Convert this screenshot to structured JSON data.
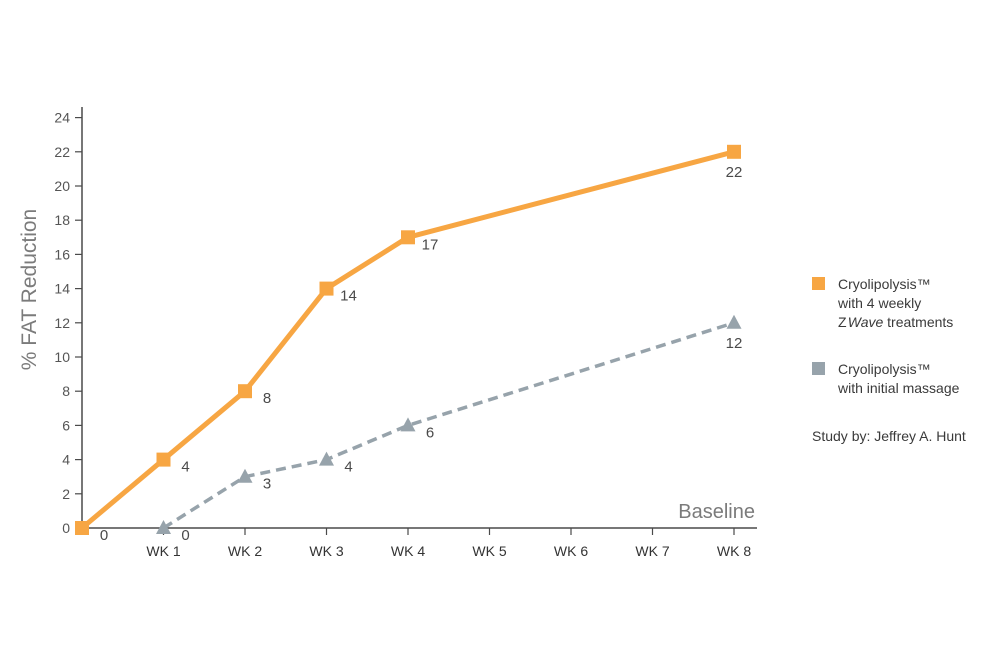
{
  "chart_data": {
    "type": "line",
    "ylabel": "% FAT Reduction",
    "xlabel": "Baseline",
    "ylim": [
      0,
      24
    ],
    "yticks": [
      0,
      2,
      4,
      6,
      8,
      10,
      12,
      14,
      16,
      18,
      20,
      22,
      24
    ],
    "categories": [
      "",
      "WK 1",
      "WK 2",
      "WK 3",
      "WK 4",
      "WK 5",
      "WK 6",
      "WK 7",
      "WK 8"
    ],
    "grid": false,
    "legend_placement": "right",
    "series": [
      {
        "name": "Cryolipolysis™ with 4 weekly Z Wave treatments",
        "color": "#f7a643",
        "marker": "square",
        "line_style": "solid",
        "points": [
          {
            "x": "",
            "y": 0,
            "label": "0"
          },
          {
            "x": "WK 1",
            "y": 4,
            "label": "4"
          },
          {
            "x": "WK 2",
            "y": 8,
            "label": "8"
          },
          {
            "x": "WK 3",
            "y": 14,
            "label": "14"
          },
          {
            "x": "WK 4",
            "y": 17,
            "label": "17"
          },
          {
            "x": "WK 8",
            "y": 22,
            "label": "22"
          }
        ]
      },
      {
        "name": "Cryolipolysis™ with initial massage",
        "color": "#97a3ab",
        "marker": "triangle",
        "line_style": "dashed",
        "points": [
          {
            "x": "WK 1",
            "y": 0,
            "label": "0"
          },
          {
            "x": "WK 2",
            "y": 3,
            "label": "3"
          },
          {
            "x": "WK 3",
            "y": 4,
            "label": "4"
          },
          {
            "x": "WK 4",
            "y": 6,
            "label": "6"
          },
          {
            "x": "WK 8",
            "y": 12,
            "label": "12"
          }
        ]
      }
    ]
  },
  "legend": {
    "items": [
      {
        "lines": [
          "Cryolipolysis™",
          "with 4 weekly"
        ],
        "last_prefix": "Z",
        "last_italic": "Wave",
        "last_suffix": " treatments",
        "color": "#f7a643"
      },
      {
        "lines": [
          "Cryolipolysis™",
          "with initial massage"
        ],
        "color": "#97a3ab"
      }
    ],
    "note": "Study by: Jeffrey A. Hunt"
  }
}
